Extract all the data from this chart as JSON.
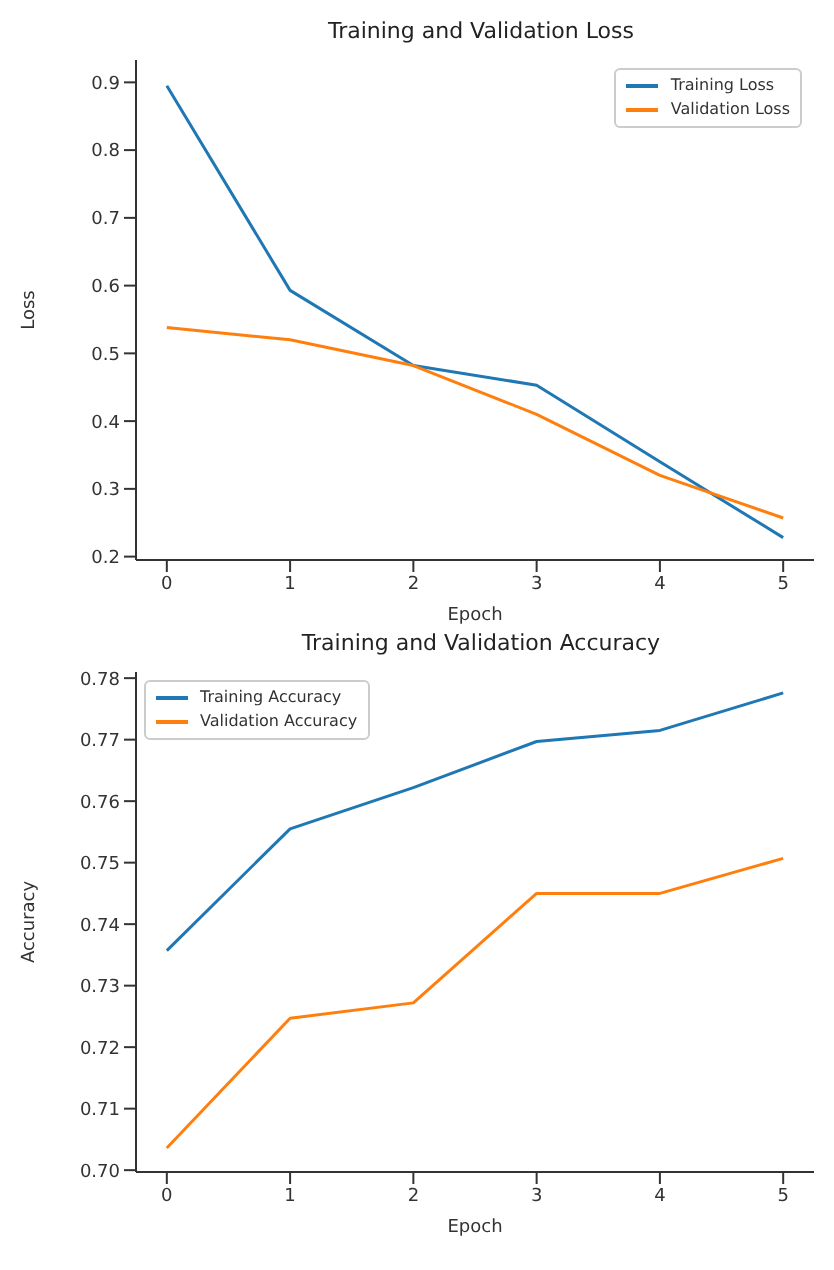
{
  "chart_data": [
    {
      "type": "line",
      "title": "Training and Validation Loss",
      "xlabel": "Epoch",
      "ylabel": "Loss",
      "x": [
        0,
        1,
        2,
        3,
        4,
        5
      ],
      "xlim": [
        -0.25,
        5.25
      ],
      "xticks": [
        0,
        1,
        2,
        3,
        4,
        5
      ],
      "ylim": [
        0.195,
        0.933
      ],
      "yticks": [
        0.2,
        0.3,
        0.4,
        0.5,
        0.6,
        0.7,
        0.8,
        0.9
      ],
      "grid": false,
      "legend": "top right",
      "marker": "none",
      "line_style": "solid",
      "series": [
        {
          "name": "Training Loss",
          "color": "#1f77b4",
          "values": [
            0.895,
            0.593,
            0.482,
            0.453,
            0.34,
            0.228
          ]
        },
        {
          "name": "Validation Loss",
          "color": "#ff7f0e",
          "values": [
            0.538,
            0.52,
            0.482,
            0.41,
            0.32,
            0.257
          ]
        }
      ]
    },
    {
      "type": "line",
      "title": "Training and Validation Accuracy",
      "xlabel": "Epoch",
      "ylabel": "Accuracy",
      "x": [
        0,
        1,
        2,
        3,
        4,
        5
      ],
      "xlim": [
        -0.25,
        5.25
      ],
      "xticks": [
        0,
        1,
        2,
        3,
        4,
        5
      ],
      "ylim": [
        0.6997,
        0.781
      ],
      "yticks": [
        {
          "value": 0.7,
          "label": "0.70"
        },
        0.71,
        0.72,
        0.73,
        0.74,
        0.75,
        0.76,
        0.77,
        0.78
      ],
      "grid": false,
      "legend": "top left",
      "marker": "none",
      "line_style": "solid",
      "series": [
        {
          "name": "Training Accuracy",
          "color": "#1f77b4",
          "values": [
            0.7357,
            0.7555,
            0.7622,
            0.7697,
            0.7715,
            0.7776
          ]
        },
        {
          "name": "Validation Accuracy",
          "color": "#ff7f0e",
          "values": [
            0.7036,
            0.7247,
            0.7272,
            0.745,
            0.745,
            0.7507
          ]
        }
      ]
    }
  ]
}
